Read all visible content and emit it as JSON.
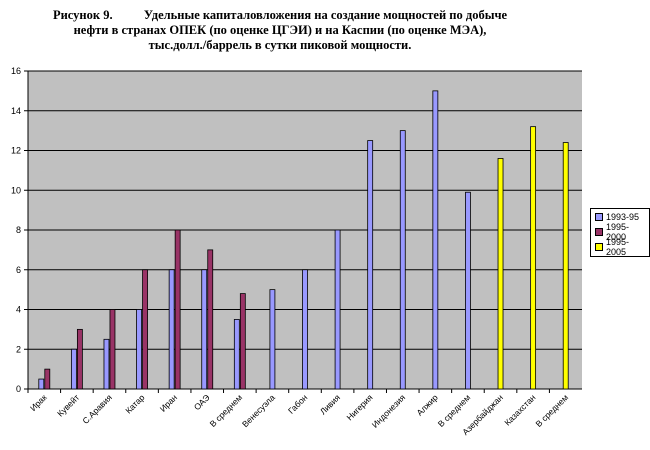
{
  "chart_data": {
    "type": "bar",
    "title_lines": [
      "Рисунок 9.          Удельные капиталовложения на создание мощностей по добыче",
      "нефти в странах ОПЕК (по оценке ЦГЭИ) и на Каспии (по оценке МЭА),",
      "тыс.долл./баррель в сутки пиковой мощности."
    ],
    "categories": [
      "Ирак",
      "Кувейт",
      "С.Аравия",
      "Катар",
      "Иран",
      "ОАЭ",
      "В среднем",
      "Венесуэла",
      "Габон",
      "Ливия",
      "Нигерия",
      "Индонезия",
      "Алжир",
      "В среднем",
      "Азербайджан",
      "Казахстан",
      "В среднем"
    ],
    "series": [
      {
        "name": "1993-95",
        "color": "#9999ff",
        "values": [
          0.5,
          2,
          2.5,
          4,
          6,
          6,
          3.5,
          5,
          6,
          8,
          12.5,
          13,
          15,
          9.9,
          null,
          null,
          null
        ]
      },
      {
        "name": "1995-2000",
        "color": "#993366",
        "values": [
          1,
          3,
          4,
          6,
          8,
          7,
          4.8,
          null,
          null,
          null,
          null,
          null,
          null,
          null,
          null,
          null,
          null
        ]
      },
      {
        "name": "1995-2005",
        "color": "#ffff00",
        "values": [
          null,
          null,
          null,
          null,
          null,
          null,
          null,
          null,
          null,
          null,
          null,
          null,
          null,
          null,
          11.6,
          13.2,
          12.4
        ]
      }
    ],
    "y_ticks": [
      "0",
      "2",
      "4",
      "6",
      "8",
      "10",
      "12",
      "14",
      "16"
    ],
    "ylim": [
      0,
      16
    ],
    "plot_background": "#c0c0c0",
    "grid": true,
    "legend_position": "right"
  }
}
